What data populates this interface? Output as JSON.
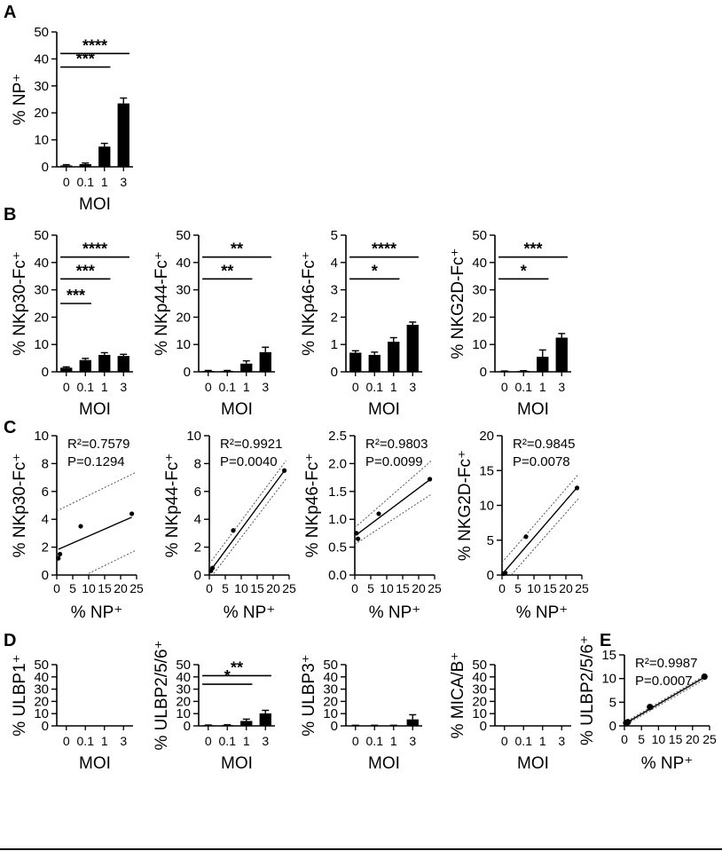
{
  "panels": [
    {
      "letter": "A"
    },
    {
      "letter": "B"
    },
    {
      "letter": "C"
    },
    {
      "letter": "D"
    },
    {
      "letter": "E"
    }
  ],
  "chart_data": [
    {
      "id": "A",
      "type": "bar",
      "categories": [
        "0",
        "0.1",
        "1",
        "3"
      ],
      "values": [
        0.5,
        1.0,
        7.5,
        23.5
      ],
      "errors": [
        0.3,
        0.4,
        1.2,
        2.0
      ],
      "ylabel": "% NP⁺",
      "xlabel": "MOI",
      "ylim": [
        0,
        50
      ],
      "yticks": [
        "0",
        "10",
        "20",
        "30",
        "40",
        "50"
      ],
      "significance": [
        {
          "from": 0,
          "to": 2,
          "label": "***",
          "y": 37
        },
        {
          "from": 0,
          "to": 3,
          "label": "****",
          "y": 42
        }
      ]
    },
    {
      "id": "B1",
      "type": "bar",
      "categories": [
        "0",
        "0.1",
        "1",
        "3"
      ],
      "values": [
        1.5,
        4.3,
        6.2,
        5.8
      ],
      "errors": [
        0.3,
        0.6,
        0.8,
        0.6
      ],
      "ylabel": "% NKp30-Fc⁺",
      "xlabel": "MOI",
      "ylim": [
        0,
        50
      ],
      "yticks": [
        "0",
        "10",
        "20",
        "30",
        "40",
        "50"
      ],
      "significance": [
        {
          "from": 0,
          "to": 1,
          "label": "***",
          "y": 25
        },
        {
          "from": 0,
          "to": 2,
          "label": "***",
          "y": 34
        },
        {
          "from": 0,
          "to": 3,
          "label": "****",
          "y": 42
        }
      ]
    },
    {
      "id": "B2",
      "type": "bar",
      "categories": [
        "0",
        "0.1",
        "1",
        "3"
      ],
      "values": [
        0.3,
        0.3,
        3.0,
        7.2
      ],
      "errors": [
        0.2,
        0.2,
        1.0,
        1.8
      ],
      "ylabel": "% NKp44-Fc⁺",
      "xlabel": "MOI",
      "ylim": [
        0,
        50
      ],
      "yticks": [
        "0",
        "10",
        "20",
        "30",
        "40",
        "50"
      ],
      "significance": [
        {
          "from": 0,
          "to": 2,
          "label": "**",
          "y": 34
        },
        {
          "from": 0,
          "to": 3,
          "label": "**",
          "y": 42
        }
      ]
    },
    {
      "id": "B3",
      "type": "bar",
      "categories": [
        "0",
        "0.1",
        "1",
        "3"
      ],
      "values": [
        0.7,
        0.62,
        1.1,
        1.72
      ],
      "errors": [
        0.07,
        0.1,
        0.15,
        0.1
      ],
      "ylabel": "% NKp46-Fc⁺",
      "xlabel": "MOI",
      "ylim": [
        0,
        5
      ],
      "yticks": [
        "0",
        "1",
        "2",
        "3",
        "4",
        "5"
      ],
      "significance": [
        {
          "from": 0,
          "to": 2,
          "label": "*",
          "y": 3.4
        },
        {
          "from": 0,
          "to": 3,
          "label": "****",
          "y": 4.2
        }
      ]
    },
    {
      "id": "B4",
      "type": "bar",
      "categories": [
        "0",
        "0.1",
        "1",
        "3"
      ],
      "values": [
        0.2,
        0.3,
        5.5,
        12.5
      ],
      "errors": [
        0.1,
        0.1,
        2.5,
        1.5
      ],
      "ylabel": "% NKG2D-Fc⁺",
      "xlabel": "MOI",
      "ylim": [
        0,
        50
      ],
      "yticks": [
        "0",
        "10",
        "20",
        "30",
        "40",
        "50"
      ],
      "significance": [
        {
          "from": 0,
          "to": 2,
          "label": "*",
          "y": 34
        },
        {
          "from": 0,
          "to": 3,
          "label": "***",
          "y": 42
        }
      ]
    },
    {
      "id": "C1",
      "type": "scatter",
      "x": [
        0.5,
        1.0,
        7.5,
        23.5
      ],
      "y": [
        1.2,
        1.5,
        3.5,
        4.4
      ],
      "ylabel": "% NKp30-Fc⁺",
      "xlabel": "% NP⁺",
      "xlim": [
        0,
        25
      ],
      "ylim": [
        0,
        10
      ],
      "xticks": [
        "0",
        "5",
        "10",
        "15",
        "20",
        "25"
      ],
      "yticks": [
        "0",
        "2",
        "4",
        "6",
        "8",
        "10"
      ],
      "r2": "R²=0.7579",
      "p": "P=0.1294",
      "fit": {
        "slope": 0.1,
        "intercept": 1.8
      },
      "band": {
        "low": [
          -1.0,
          1.8
        ],
        "high": [
          4.6,
          7.4
        ],
        "at": [
          0,
          25
        ]
      }
    },
    {
      "id": "C2",
      "type": "scatter",
      "x": [
        0.5,
        1.0,
        7.5,
        23.5
      ],
      "y": [
        0.3,
        0.5,
        3.2,
        7.5
      ],
      "ylabel": "% NKp44-Fc⁺",
      "xlabel": "% NP⁺",
      "xlim": [
        0,
        25
      ],
      "ylim": [
        0,
        10
      ],
      "xticks": [
        "0",
        "5",
        "10",
        "15",
        "20",
        "25"
      ],
      "yticks": [
        "0",
        "2",
        "4",
        "6",
        "8",
        "10"
      ],
      "r2": "R²=0.9921",
      "p": "P=0.0040",
      "fit": {
        "slope": 0.31,
        "intercept": 0.2
      },
      "band": {
        "low": [
          -0.3,
          6.9
        ],
        "high": [
          0.8,
          8.2
        ],
        "at": [
          0,
          24
        ]
      }
    },
    {
      "id": "C3",
      "type": "scatter",
      "x": [
        0.5,
        1.0,
        7.5,
        23.5
      ],
      "y": [
        0.75,
        0.65,
        1.1,
        1.72
      ],
      "ylabel": "% NKp46-Fc⁺",
      "xlabel": "% NP⁺",
      "xlim": [
        0,
        25
      ],
      "ylim": [
        0,
        2.5
      ],
      "xticks": [
        "0",
        "5",
        "10",
        "15",
        "20",
        "25"
      ],
      "yticks": [
        "0.0",
        "0.5",
        "1.0",
        "1.5",
        "2.0",
        "2.5"
      ],
      "r2": "R²=0.9803",
      "p": "P=0.0099",
      "fit": {
        "slope": 0.043,
        "intercept": 0.7
      },
      "band": {
        "low": [
          0.55,
          1.45
        ],
        "high": [
          0.85,
          2.05
        ],
        "at": [
          0,
          24
        ]
      }
    },
    {
      "id": "C4",
      "type": "scatter",
      "x": [
        0.5,
        1.0,
        7.5,
        23.5
      ],
      "y": [
        0.2,
        0.3,
        5.5,
        12.5
      ],
      "ylabel": "% NKG2D-Fc⁺",
      "xlabel": "% NP⁺",
      "xlim": [
        0,
        25
      ],
      "ylim": [
        0,
        20
      ],
      "xticks": [
        "0",
        "5",
        "10",
        "15",
        "20",
        "25"
      ],
      "yticks": [
        "0",
        "5",
        "10",
        "15",
        "20"
      ],
      "r2": "R²=0.9845",
      "p": "P=0.0078",
      "fit": {
        "slope": 0.53,
        "intercept": 0.1
      },
      "band": {
        "low": [
          -1.5,
          11.0
        ],
        "high": [
          1.8,
          14.5
        ],
        "at": [
          0,
          24
        ]
      }
    },
    {
      "id": "D1",
      "type": "bar",
      "categories": [
        "0",
        "0.1",
        "1",
        "3"
      ],
      "values": [
        0,
        0,
        0,
        0
      ],
      "errors": [
        0,
        0,
        0,
        0
      ],
      "ylabel": "% ULBP1⁺",
      "xlabel": "MOI",
      "ylim": [
        0,
        50
      ],
      "yticks": [
        "0",
        "10",
        "20",
        "30",
        "40",
        "50"
      ],
      "significance": []
    },
    {
      "id": "D2",
      "type": "bar",
      "categories": [
        "0",
        "0.1",
        "1",
        "3"
      ],
      "values": [
        0.5,
        0.6,
        4.0,
        10.2
      ],
      "errors": [
        0.2,
        0.3,
        1.5,
        2.5
      ],
      "ylabel": "% ULBP2/5/6⁺",
      "xlabel": "MOI",
      "ylim": [
        0,
        50
      ],
      "yticks": [
        "0",
        "10",
        "20",
        "30",
        "40",
        "50"
      ],
      "significance": [
        {
          "from": 0,
          "to": 2,
          "label": "*",
          "y": 34
        },
        {
          "from": 0,
          "to": 3,
          "label": "**",
          "y": 41
        }
      ]
    },
    {
      "id": "D3",
      "type": "bar",
      "categories": [
        "0",
        "0.1",
        "1",
        "3"
      ],
      "values": [
        0.3,
        0.3,
        0.3,
        5.3
      ],
      "errors": [
        0.2,
        0.2,
        0.2,
        3.8
      ],
      "ylabel": "% ULBP3⁺",
      "xlabel": "MOI",
      "ylim": [
        0,
        50
      ],
      "yticks": [
        "0",
        "10",
        "20",
        "30",
        "40",
        "50"
      ],
      "significance": []
    },
    {
      "id": "D4",
      "type": "bar",
      "categories": [
        "0",
        "0.1",
        "1",
        "3"
      ],
      "values": [
        0,
        0,
        0,
        0
      ],
      "errors": [
        0,
        0,
        0,
        0
      ],
      "ylabel": "% MICA/B⁺",
      "xlabel": "MOI",
      "ylim": [
        0,
        50
      ],
      "yticks": [
        "0",
        "10",
        "20",
        "30",
        "40",
        "50"
      ],
      "significance": []
    },
    {
      "id": "E",
      "type": "scatter",
      "x": [
        0.5,
        1.0,
        7.5,
        23.5
      ],
      "y": [
        0.6,
        0.8,
        4.0,
        10.4
      ],
      "ylabel": "% ULBP2/5/6⁺",
      "xlabel": "% NP⁺",
      "xlim": [
        0,
        25
      ],
      "ylim": [
        0,
        15
      ],
      "xticks": [
        "0",
        "5",
        "10",
        "15",
        "20",
        "25"
      ],
      "yticks": [
        "0",
        "5",
        "10",
        "15"
      ],
      "r2": "R²=0.9987",
      "p": "P=0.0007",
      "fit": {
        "slope": 0.42,
        "intercept": 0.4
      },
      "band": {
        "low": [
          0.1,
          10.0
        ],
        "high": [
          0.7,
          10.8
        ],
        "at": [
          0,
          24
        ]
      }
    }
  ]
}
